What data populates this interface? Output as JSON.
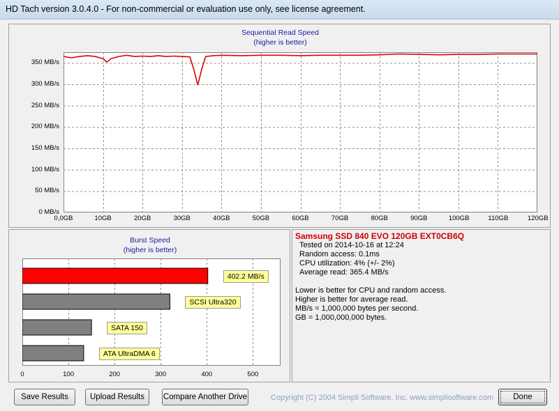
{
  "window": {
    "title": "HD Tach version 3.0.4.0  - For non-commercial or evaluation use only, see license agreement."
  },
  "seq_chart": {
    "title": "Sequential Read Speed",
    "subtitle": "(higher is better)",
    "y_ticks": [
      "0 MB/s",
      "50 MB/s",
      "100 MB/s",
      "150 MB/s",
      "200 MB/s",
      "250 MB/s",
      "300 MB/s",
      "350 MB/s"
    ],
    "x_ticks": [
      "0,0GB",
      "10GB",
      "20GB",
      "30GB",
      "40GB",
      "50GB",
      "60GB",
      "70GB",
      "80GB",
      "90GB",
      "100GB",
      "110GB",
      "120GB"
    ]
  },
  "burst_chart": {
    "title": "Burst Speed",
    "subtitle": "(higher is better)",
    "x_ticks": [
      "0",
      "100",
      "200",
      "300",
      "400",
      "500"
    ],
    "bars": [
      {
        "label": "402.2 MB/s",
        "value": 402.2,
        "color": "#ff0000"
      },
      {
        "label": "SCSI Ultra320",
        "value": 320,
        "color": "#808080"
      },
      {
        "label": "SATA 150",
        "value": 150,
        "color": "#808080"
      },
      {
        "label": "ATA UltraDMA 6",
        "value": 133,
        "color": "#808080"
      }
    ]
  },
  "chart_data": [
    {
      "type": "line",
      "title": "Sequential Read Speed",
      "subtitle": "(higher is better)",
      "xlabel": "",
      "ylabel": "",
      "xlim": [
        0,
        120
      ],
      "ylim": [
        0,
        375
      ],
      "grid": true,
      "x": [
        0,
        2,
        4,
        6,
        8,
        10,
        11,
        12,
        14,
        16,
        18,
        20,
        22,
        24,
        26,
        28,
        30,
        32,
        33,
        34,
        35,
        36,
        38,
        40,
        45,
        50,
        55,
        60,
        65,
        70,
        75,
        80,
        85,
        90,
        95,
        100,
        105,
        110,
        115,
        120
      ],
      "series": [
        {
          "color": "#e00000",
          "values": [
            365,
            362,
            365,
            367,
            365,
            360,
            352,
            360,
            365,
            368,
            365,
            366,
            365,
            367,
            365,
            366,
            365,
            364,
            335,
            298,
            335,
            365,
            367,
            368,
            367,
            368,
            368,
            367,
            368,
            368,
            368,
            369,
            371,
            370,
            369,
            370,
            370,
            371,
            371,
            371
          ]
        }
      ]
    },
    {
      "type": "bar",
      "orientation": "horizontal",
      "title": "Burst Speed",
      "subtitle": "(higher is better)",
      "categories": [
        "402.2 MB/s",
        "SCSI Ultra320",
        "SATA 150",
        "ATA UltraDMA 6"
      ],
      "values": [
        402.2,
        320,
        150,
        133
      ],
      "xlim": [
        0,
        560
      ],
      "grid": true
    }
  ],
  "info": {
    "drive": "Samsung SSD 840 EVO 120GB EXT0CB6Q",
    "lines": [
      "Tested on 2014-10-16 at 12:24",
      "Random access: 0.1ms",
      "CPU utilization: 4% (+/- 2%)",
      "Average read: 365.4 MB/s"
    ],
    "notes": [
      "Lower is better for CPU and random access.",
      "Higher is better for average read.",
      "MB/s = 1,000,000 bytes per second.",
      "GB = 1,000,000,000 bytes."
    ]
  },
  "buttons": {
    "save": "Save Results",
    "upload": "Upload Results",
    "compare": "Compare Another Drive",
    "done": "Done"
  },
  "copyright": "Copyright (C) 2004 Simpli Software, Inc. www.simplisoftware.com"
}
